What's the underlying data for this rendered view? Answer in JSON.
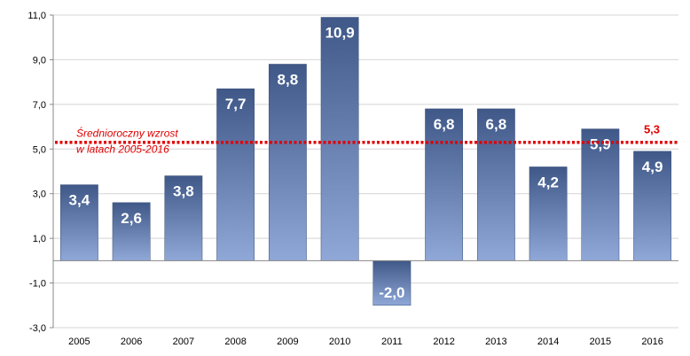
{
  "chart_data": {
    "type": "bar",
    "categories": [
      "2005",
      "2006",
      "2007",
      "2008",
      "2009",
      "2010",
      "2011",
      "2012",
      "2013",
      "2014",
      "2015",
      "2016"
    ],
    "values": [
      3.4,
      2.6,
      3.8,
      7.7,
      8.8,
      10.9,
      -2.0,
      6.8,
      6.8,
      4.2,
      5.9,
      4.9
    ],
    "value_labels": [
      "3,4",
      "2,6",
      "3,8",
      "7,7",
      "8,8",
      "10,9",
      "-2,0",
      "6,8",
      "6,8",
      "4,2",
      "5,9",
      "4,9"
    ],
    "ylim": [
      -3.0,
      11.0
    ],
    "yticks": [
      -3.0,
      -1.0,
      1.0,
      3.0,
      5.0,
      7.0,
      9.0,
      11.0
    ],
    "ytick_labels": [
      "-3,0",
      "-1,0",
      "1,0",
      "3,0",
      "5,0",
      "7,0",
      "9,0",
      "11,0"
    ],
    "grid": "horizontal",
    "average": {
      "value": 5.3,
      "value_label": "5,3",
      "text_line1": "Średnioroczny wzrost",
      "text_line2": "w latach 2005-2016",
      "color": "#e00000"
    },
    "bar_color_top": "#3f5888",
    "bar_color_bottom": "#8fa8d8"
  }
}
